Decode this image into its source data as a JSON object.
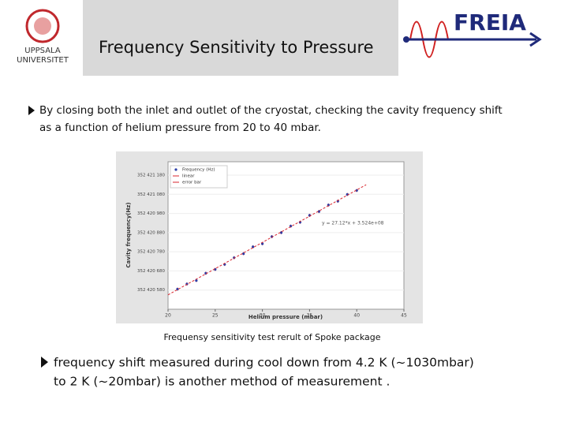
{
  "slide": {
    "header": {
      "title": "Frequency Sensitivity to Pressure",
      "logo_left": [
        "UPPSALA",
        "UNIVERSITET"
      ],
      "logo_right": "FREIA"
    },
    "bullets": [
      "By closing both the inlet and outlet of the cryostat,  checking the cavity frequency shift",
      "as a function of helium pressure from 20 to 40 mbar."
    ],
    "caption": "Frequensy sensitivity test rerult of Spoke package",
    "bullets2": [
      "frequency shift measured during cool down from 4.2 K (~1030mbar)",
      "to 2 K (~20mbar) is another method of measurement ."
    ]
  },
  "chart_data": {
    "type": "scatter",
    "xlabel": "Helium pressure (mbar)",
    "ylabel": "Cavity frequency(Hz)",
    "annotation": "y = 27.12*x + 3.524e+08",
    "xlim": [
      20,
      45
    ],
    "xticks": [
      20,
      25,
      30,
      35,
      40,
      45
    ],
    "ylim": [
      352420480,
      352421250
    ],
    "yticks": [
      {
        "value": 352420580,
        "label": "352 420 580"
      },
      {
        "value": 352420680,
        "label": "352 420 680"
      },
      {
        "value": 352420780,
        "label": "352 420 780"
      },
      {
        "value": 352420880,
        "label": "352 420 880"
      },
      {
        "value": 352420980,
        "label": "352 420 980"
      },
      {
        "value": 352421080,
        "label": "352 421 080"
      },
      {
        "value": 352421180,
        "label": "352 421 180"
      }
    ],
    "error_bar_label": "error bar",
    "error_color": "#d9262e",
    "series": [
      {
        "name": "Frequency (Hz)",
        "color": "#2b3fa8",
        "mode": "points",
        "x": [
          21,
          22,
          23,
          24,
          25,
          26,
          27,
          28,
          29,
          30,
          31,
          32,
          33,
          34,
          35,
          36,
          37,
          38,
          39,
          40
        ],
        "values": [
          352420585,
          352420612,
          352420630,
          352420668,
          352420688,
          352420714,
          352420749,
          352420770,
          352420806,
          352420822,
          352420859,
          352420880,
          352420914,
          352420934,
          352420970,
          352420990,
          352421024,
          352421044,
          352421079,
          352421100
        ],
        "errors": [
          8,
          8,
          8,
          8,
          8,
          8,
          8,
          8,
          8,
          8,
          8,
          8,
          8,
          8,
          8,
          8,
          8,
          8,
          8,
          8
        ]
      },
      {
        "name": "linear",
        "color": "#d9262e",
        "mode": "line",
        "x": [
          20,
          41
        ],
        "values": [
          352420555,
          352421130
        ]
      }
    ]
  }
}
